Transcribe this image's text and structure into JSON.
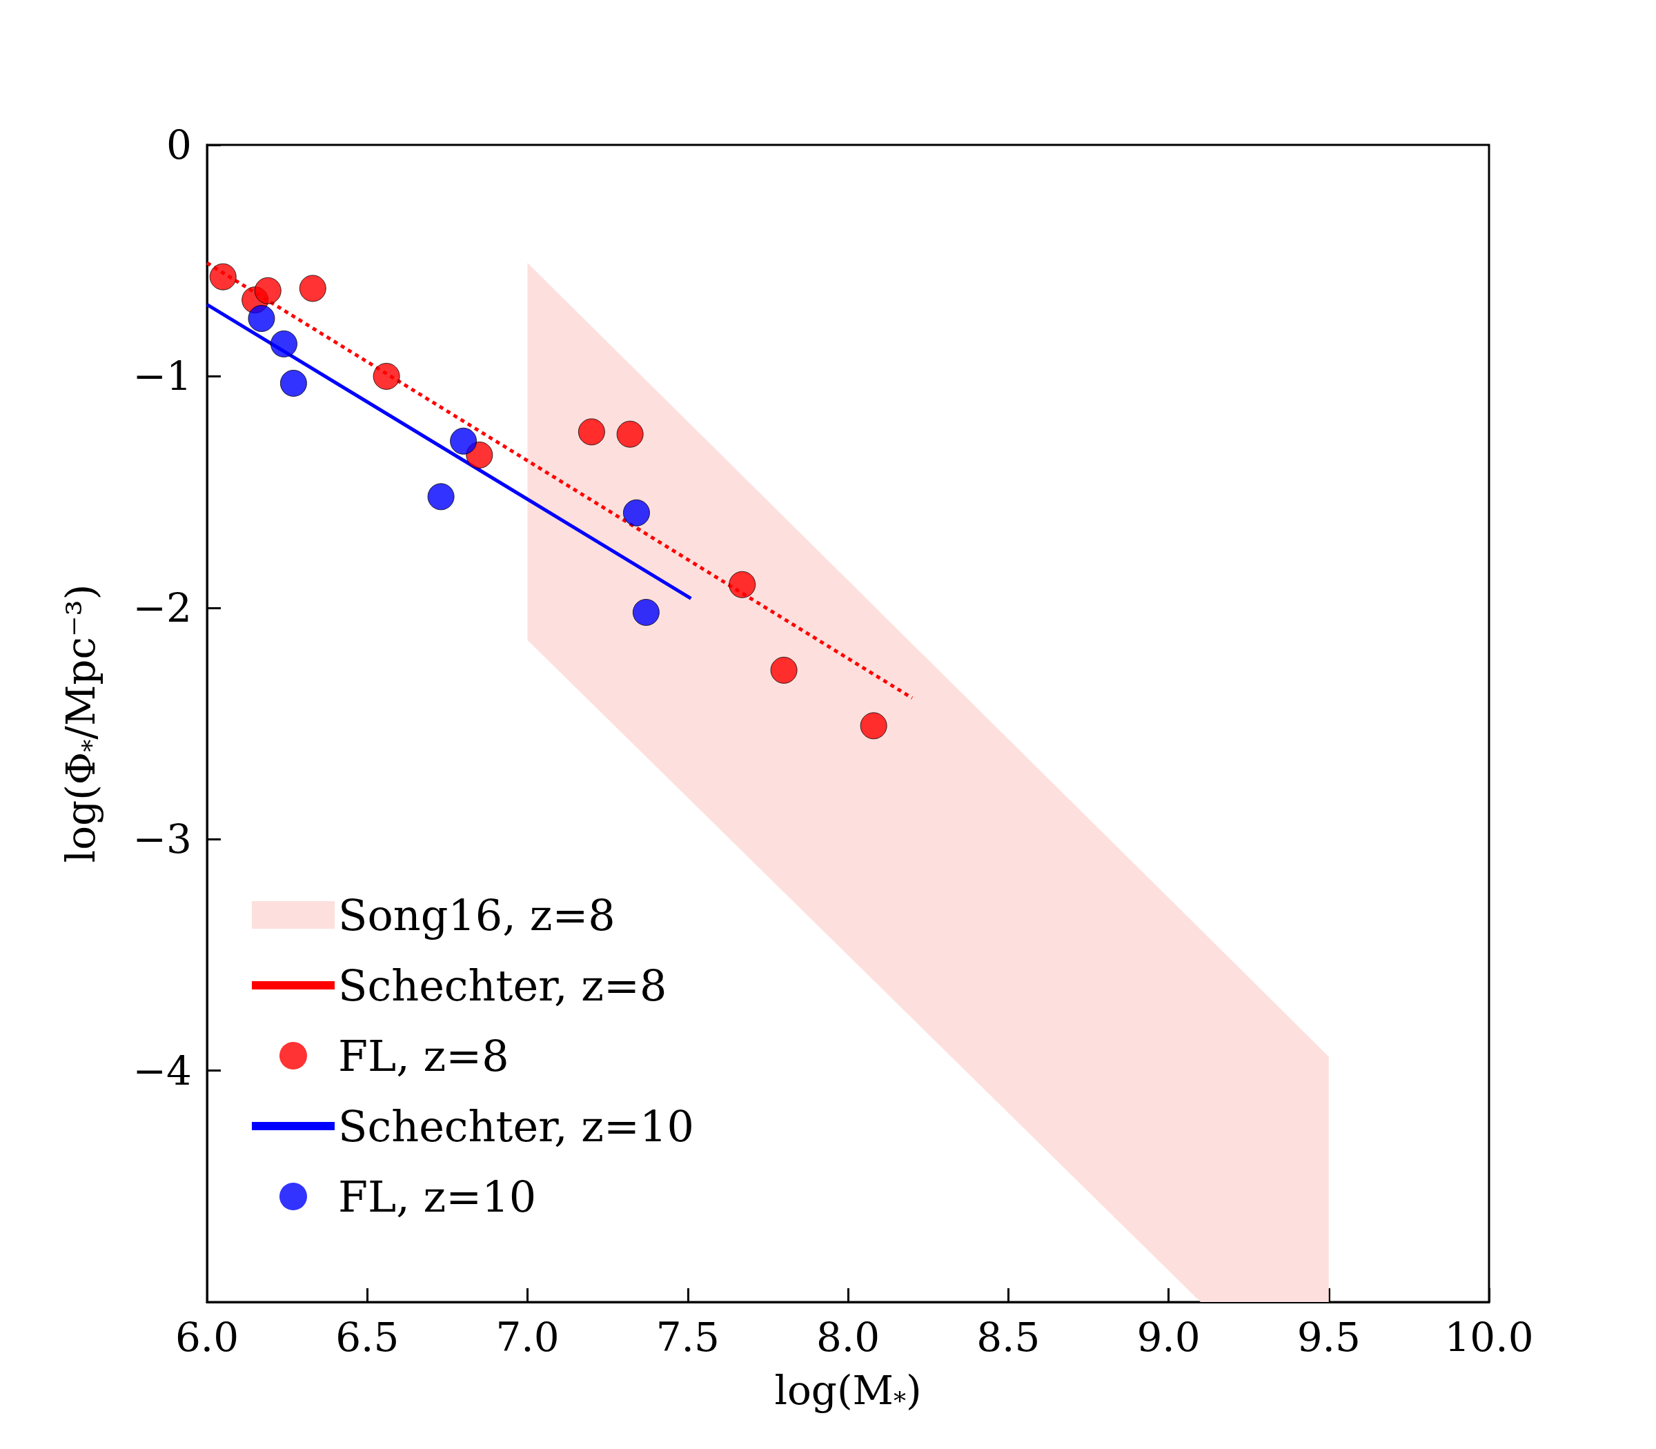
{
  "chart_data": {
    "type": "scatter",
    "xlabel": "log(M$_{*}$)",
    "ylabel": "log(Φ$_{*}$/Mpc⁻³)",
    "xlim": [
      6,
      10
    ],
    "ylim": [
      -5,
      0
    ],
    "xticks": [
      {
        "value": 6,
        "label": "6.0"
      },
      {
        "value": 6.5,
        "label": "6.5"
      },
      {
        "value": 7,
        "label": "7.0"
      },
      {
        "value": 7.5,
        "label": "7.5"
      },
      {
        "value": 8,
        "label": "8.0"
      },
      {
        "value": 8.5,
        "label": "8.5"
      },
      {
        "value": 9,
        "label": "9.0"
      },
      {
        "value": 9.5,
        "label": "9.5"
      },
      {
        "value": 10,
        "label": "10.0"
      }
    ],
    "yticks": [
      0,
      {
        "value": -1,
        "label": "−1"
      },
      {
        "value": -2,
        "label": "−2"
      },
      {
        "value": -3,
        "label": "−3"
      },
      {
        "value": -4,
        "label": "−4"
      }
    ],
    "series": [
      {
        "name": "Song16, z=8",
        "type": "line",
        "color": "#fde0dd",
        "x": [
          7,
          9.1,
          9.5
        ],
        "values": [
          null,
          null,
          null
        ],
        "lower": [
          -2.14,
          -5,
          -5
        ],
        "upper": [
          -0.51,
          -3.39,
          -3.94
        ]
      },
      {
        "name": "Schechter, z=8",
        "type": "line",
        "line_style": "dotted",
        "marker": "none",
        "color": "#ff0000",
        "x": [
          6,
          8.2
        ],
        "values": [
          -0.51,
          -2.39
        ]
      },
      {
        "name": "FL, z=8",
        "type": "scatter",
        "marker": "circle",
        "color": "#ff0000",
        "x": [
          6.05,
          6.15,
          6.19,
          6.33,
          6.56,
          7.2,
          7.32,
          6.85,
          7.67,
          7.8,
          8.08
        ],
        "values": [
          -0.57,
          -0.67,
          -0.63,
          -0.62,
          -1.0,
          -1.24,
          -1.25,
          -1.34,
          -1.9,
          -2.27,
          -2.51
        ]
      },
      {
        "name": "Schechter, z=10",
        "type": "line",
        "line_style": "solid",
        "marker": "none",
        "color": "#0000ff",
        "x": [
          6,
          7.51
        ],
        "values": [
          -0.69,
          -1.96
        ]
      },
      {
        "name": "FL, z=10",
        "type": "scatter",
        "marker": "circle",
        "color": "#0000ff",
        "x": [
          6.17,
          6.24,
          6.27,
          6.8,
          6.73,
          7.34,
          7.37
        ],
        "values": [
          -0.75,
          -0.86,
          -1.03,
          -1.28,
          -1.52,
          -1.59,
          -2.02
        ]
      }
    ],
    "legend": "bottom left",
    "grid": false
  }
}
